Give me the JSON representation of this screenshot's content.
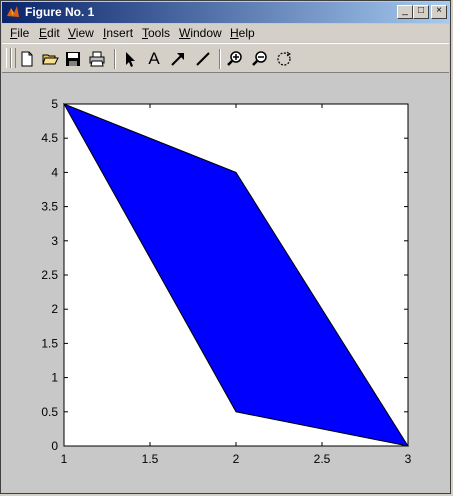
{
  "window": {
    "title": "Figure No. 1"
  },
  "titlebar_buttons": {
    "minimize": "_",
    "maximize": "□",
    "close": "×"
  },
  "menu": [
    {
      "label": "File",
      "accel": "F",
      "rest": "ile"
    },
    {
      "label": "Edit",
      "accel": "E",
      "rest": "dit"
    },
    {
      "label": "View",
      "accel": "V",
      "rest": "iew"
    },
    {
      "label": "Insert",
      "accel": "I",
      "rest": "nsert"
    },
    {
      "label": "Tools",
      "accel": "T",
      "rest": "ools"
    },
    {
      "label": "Window",
      "accel": "W",
      "rest": "indow"
    },
    {
      "label": "Help",
      "accel": "H",
      "rest": "elp"
    }
  ],
  "toolbar": [
    "new-file-icon",
    "open-folder-icon",
    "save-icon",
    "print-icon",
    "select-arrow-icon",
    "insert-text-icon",
    "insert-arrow-icon",
    "insert-line-icon",
    "zoom-in-icon",
    "zoom-out-icon",
    "rotate-icon"
  ],
  "toolbar_text_tool": "A",
  "chart_data": {
    "type": "area",
    "title": "",
    "xlabel": "",
    "ylabel": "",
    "xlim": [
      1,
      3
    ],
    "ylim": [
      0,
      5
    ],
    "grid": false,
    "fill_color": "#0000ff",
    "polygon": {
      "x": [
        1,
        2,
        3,
        2
      ],
      "y": [
        5,
        4,
        0,
        0.5
      ]
    },
    "x_ticks": [
      1,
      1.5,
      2,
      2.5,
      3
    ],
    "x_tick_labels": [
      "1",
      "1.5",
      "2",
      "2.5",
      "3"
    ],
    "y_ticks": [
      0,
      0.5,
      1,
      1.5,
      2,
      2.5,
      3,
      3.5,
      4,
      4.5,
      5
    ],
    "y_tick_labels": [
      "0",
      "0.5",
      "1",
      "1.5",
      "2",
      "2.5",
      "3",
      "3.5",
      "4",
      "4.5",
      "5"
    ]
  }
}
